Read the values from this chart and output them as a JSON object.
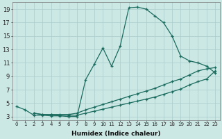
{
  "xlabel": "Humidex (Indice chaleur)",
  "background_color": "#cce8e4",
  "grid_color": "#aacccc",
  "line_color": "#1a6b5e",
  "xlim": [
    -0.5,
    23.5
  ],
  "ylim": [
    2.5,
    20.0
  ],
  "xticks": [
    0,
    1,
    2,
    3,
    4,
    5,
    6,
    7,
    8,
    9,
    10,
    11,
    12,
    13,
    14,
    15,
    16,
    17,
    18,
    19,
    20,
    21,
    22,
    23
  ],
  "yticks": [
    3,
    5,
    7,
    9,
    11,
    13,
    15,
    17,
    19
  ],
  "line1_x": [
    0,
    1,
    2,
    3,
    4,
    5,
    6,
    7,
    8,
    9,
    10,
    11,
    12,
    13,
    14,
    15,
    16,
    17,
    18,
    19,
    20,
    21,
    22,
    23
  ],
  "line1_y": [
    4.5,
    4.0,
    3.2,
    3.2,
    3.1,
    3.1,
    3.0,
    3.0,
    8.5,
    10.8,
    13.2,
    10.5,
    13.5,
    19.2,
    19.3,
    19.0,
    18.0,
    17.0,
    15.0,
    12.0,
    11.3,
    11.0,
    10.5,
    9.5
  ],
  "line2_x": [
    2,
    3,
    4,
    5,
    6,
    7,
    8,
    9,
    10,
    11,
    12,
    13,
    14,
    15,
    16,
    17,
    18,
    19,
    20,
    21,
    22,
    23
  ],
  "line2_y": [
    3.5,
    3.3,
    3.3,
    3.3,
    3.3,
    3.5,
    4.0,
    4.4,
    4.8,
    5.2,
    5.6,
    6.0,
    6.4,
    6.8,
    7.2,
    7.7,
    8.2,
    8.6,
    9.2,
    9.8,
    10.1,
    10.3
  ],
  "line3_x": [
    2,
    3,
    4,
    5,
    6,
    7,
    8,
    9,
    10,
    11,
    12,
    13,
    14,
    15,
    16,
    17,
    18,
    19,
    20,
    21,
    22,
    23
  ],
  "line3_y": [
    3.5,
    3.3,
    3.3,
    3.2,
    3.2,
    3.2,
    3.5,
    3.8,
    4.1,
    4.4,
    4.7,
    5.0,
    5.3,
    5.6,
    5.9,
    6.3,
    6.7,
    7.1,
    7.7,
    8.2,
    8.6,
    9.8
  ]
}
